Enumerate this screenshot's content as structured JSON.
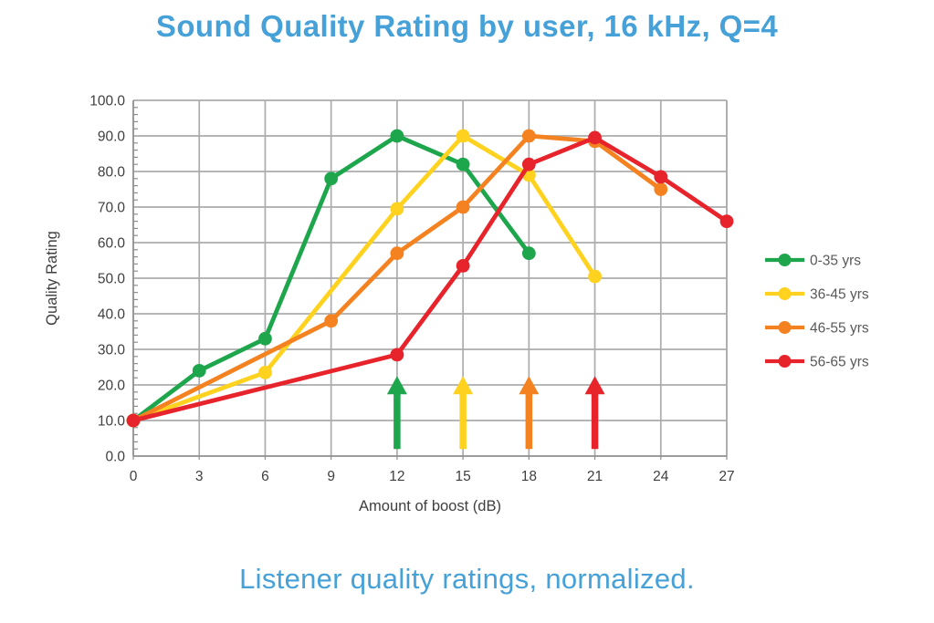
{
  "page": {
    "background": "#FFFFFF"
  },
  "chart_data": {
    "type": "line",
    "title": "Sound Quality Rating by user, 16 kHz, Q=4",
    "caption": "Listener quality ratings, normalized.",
    "xlabel": "Amount of boost (dB)",
    "ylabel": "Quality Rating",
    "xlim": [
      0,
      27
    ],
    "ylim": [
      0,
      100
    ],
    "x_ticks": [
      0,
      3,
      6,
      9,
      12,
      15,
      18,
      21,
      24,
      27
    ],
    "y_tick_step": 10,
    "y_minor_tick_step": 2,
    "y_tick_decimals": 1,
    "grid": true,
    "legend_position": "right",
    "series": [
      {
        "name": "0-35 yrs",
        "color": "#1EA64C",
        "points": [
          [
            0,
            10
          ],
          [
            3,
            24
          ],
          [
            6,
            33
          ],
          [
            9,
            78
          ],
          [
            12,
            90
          ],
          [
            15,
            82
          ],
          [
            18,
            57
          ]
        ]
      },
      {
        "name": "36-45 yrs",
        "color": "#FFD21F",
        "points": [
          [
            0,
            10
          ],
          [
            6,
            23.5
          ],
          [
            12,
            69.5
          ],
          [
            15,
            90
          ],
          [
            18,
            79
          ],
          [
            21,
            50.5
          ]
        ]
      },
      {
        "name": "46-55 yrs",
        "color": "#F58220",
        "points": [
          [
            0,
            10
          ],
          [
            9,
            38
          ],
          [
            12,
            57
          ],
          [
            15,
            70
          ],
          [
            18,
            90
          ],
          [
            21,
            88.5
          ],
          [
            24,
            75
          ]
        ]
      },
      {
        "name": "56-65 yrs",
        "color": "#E7242B",
        "points": [
          [
            0,
            10
          ],
          [
            12,
            28.5
          ],
          [
            15,
            53.5
          ],
          [
            18,
            82
          ],
          [
            21,
            89.5
          ],
          [
            24,
            78.5
          ],
          [
            27,
            66
          ]
        ]
      }
    ],
    "annotations": {
      "up_arrows": [
        {
          "x": 12,
          "color": "#1EA64C"
        },
        {
          "x": 15,
          "color": "#FFD21F"
        },
        {
          "x": 18,
          "color": "#F58220"
        },
        {
          "x": 21,
          "color": "#E7242B"
        }
      ],
      "arrow_y_base": 2,
      "arrow_y_tip": 22.5
    },
    "colors": {
      "title": "#45A1D8",
      "caption": "#45A1D8",
      "grid": "#ACACAC",
      "axis": "#8F8F8F",
      "tick_text": "#3F3F3F",
      "axis_title_text": "#3F3F3F",
      "legend_text": "#595959"
    }
  }
}
